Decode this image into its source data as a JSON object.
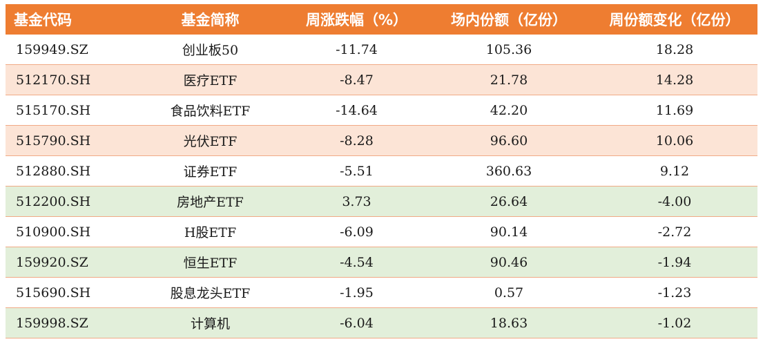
{
  "table": {
    "headers": [
      "基金代码",
      "基金简称",
      "周涨跌幅（%）",
      "场内份额（亿份）",
      "周份额变化（亿份）"
    ],
    "rows": [
      {
        "code": "159949.SZ",
        "name": "创业板50",
        "weekly_change_pct": "-11.74",
        "shares": "105.36",
        "share_change": "18.28",
        "highlight": "none"
      },
      {
        "code": "512170.SH",
        "name": "医疗ETF",
        "weekly_change_pct": "-8.47",
        "shares": "21.78",
        "share_change": "14.28",
        "highlight": "orange"
      },
      {
        "code": "515170.SH",
        "name": "食品饮料ETF",
        "weekly_change_pct": "-14.64",
        "shares": "42.20",
        "share_change": "11.69",
        "highlight": "none"
      },
      {
        "code": "515790.SH",
        "name": "光伏ETF",
        "weekly_change_pct": "-8.28",
        "shares": "96.60",
        "share_change": "10.06",
        "highlight": "orange"
      },
      {
        "code": "512880.SH",
        "name": "证券ETF",
        "weekly_change_pct": "-5.51",
        "shares": "360.63",
        "share_change": "9.12",
        "highlight": "none"
      },
      {
        "code": "512200.SH",
        "name": "房地产ETF",
        "weekly_change_pct": "3.73",
        "shares": "26.64",
        "share_change": "-4.00",
        "highlight": "green"
      },
      {
        "code": "510900.SH",
        "name": "H股ETF",
        "weekly_change_pct": "-6.09",
        "shares": "90.14",
        "share_change": "-2.72",
        "highlight": "none"
      },
      {
        "code": "159920.SZ",
        "name": "恒生ETF",
        "weekly_change_pct": "-4.54",
        "shares": "90.46",
        "share_change": "-1.94",
        "highlight": "green"
      },
      {
        "code": "515690.SH",
        "name": "股息龙头ETF",
        "weekly_change_pct": "-1.95",
        "shares": "0.57",
        "share_change": "-1.23",
        "highlight": "none"
      },
      {
        "code": "159998.SZ",
        "name": "计算机",
        "weekly_change_pct": "-6.04",
        "shares": "18.63",
        "share_change": "-1.02",
        "highlight": "green"
      }
    ]
  },
  "colors": {
    "header_bg": "#ee7d31",
    "header_text": "#ffffff",
    "orange_row": "#fce4d6",
    "green_row": "#e2efda",
    "row_divider": "#f1a985"
  }
}
